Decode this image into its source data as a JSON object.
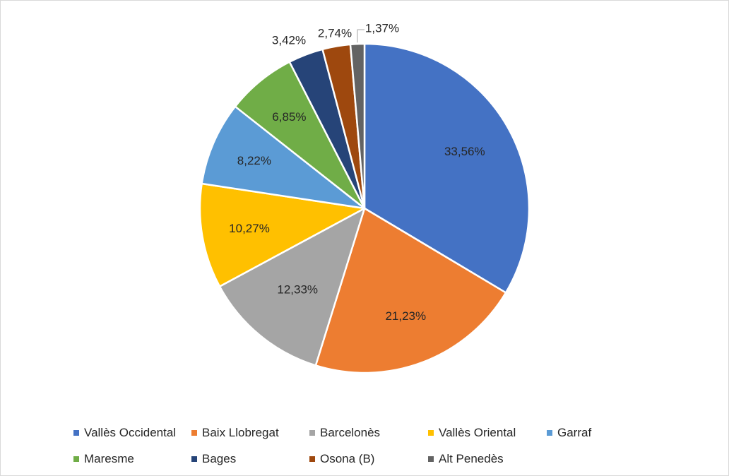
{
  "chart_data": {
    "type": "pie",
    "title": "",
    "slices": [
      {
        "label": "Vallès Occidental",
        "value": 33.56,
        "value_label": "33,56%",
        "color": "#4472C4"
      },
      {
        "label": "Baix Llobregat",
        "value": 21.23,
        "value_label": "21,23%",
        "color": "#ED7D31"
      },
      {
        "label": "Barcelonès",
        "value": 12.33,
        "value_label": "12,33%",
        "color": "#A5A5A5"
      },
      {
        "label": "Vallès Oriental",
        "value": 10.27,
        "value_label": "10,27%",
        "color": "#FFC000"
      },
      {
        "label": "Garraf",
        "value": 8.22,
        "value_label": "8,22%",
        "color": "#5B9BD5"
      },
      {
        "label": "Maresme",
        "value": 6.85,
        "value_label": "6,85%",
        "color": "#70AD47"
      },
      {
        "label": "Bages",
        "value": 3.42,
        "value_label": "3,42%",
        "color": "#264478"
      },
      {
        "label": "Osona (B)",
        "value": 2.74,
        "value_label": "2,74%",
        "color": "#9E480E"
      },
      {
        "label": "Alt Penedès",
        "value": 1.37,
        "value_label": "1,37%",
        "color": "#636363"
      }
    ],
    "legend_position": "bottom",
    "start_angle": "12 o'clock",
    "direction": "clockwise"
  }
}
